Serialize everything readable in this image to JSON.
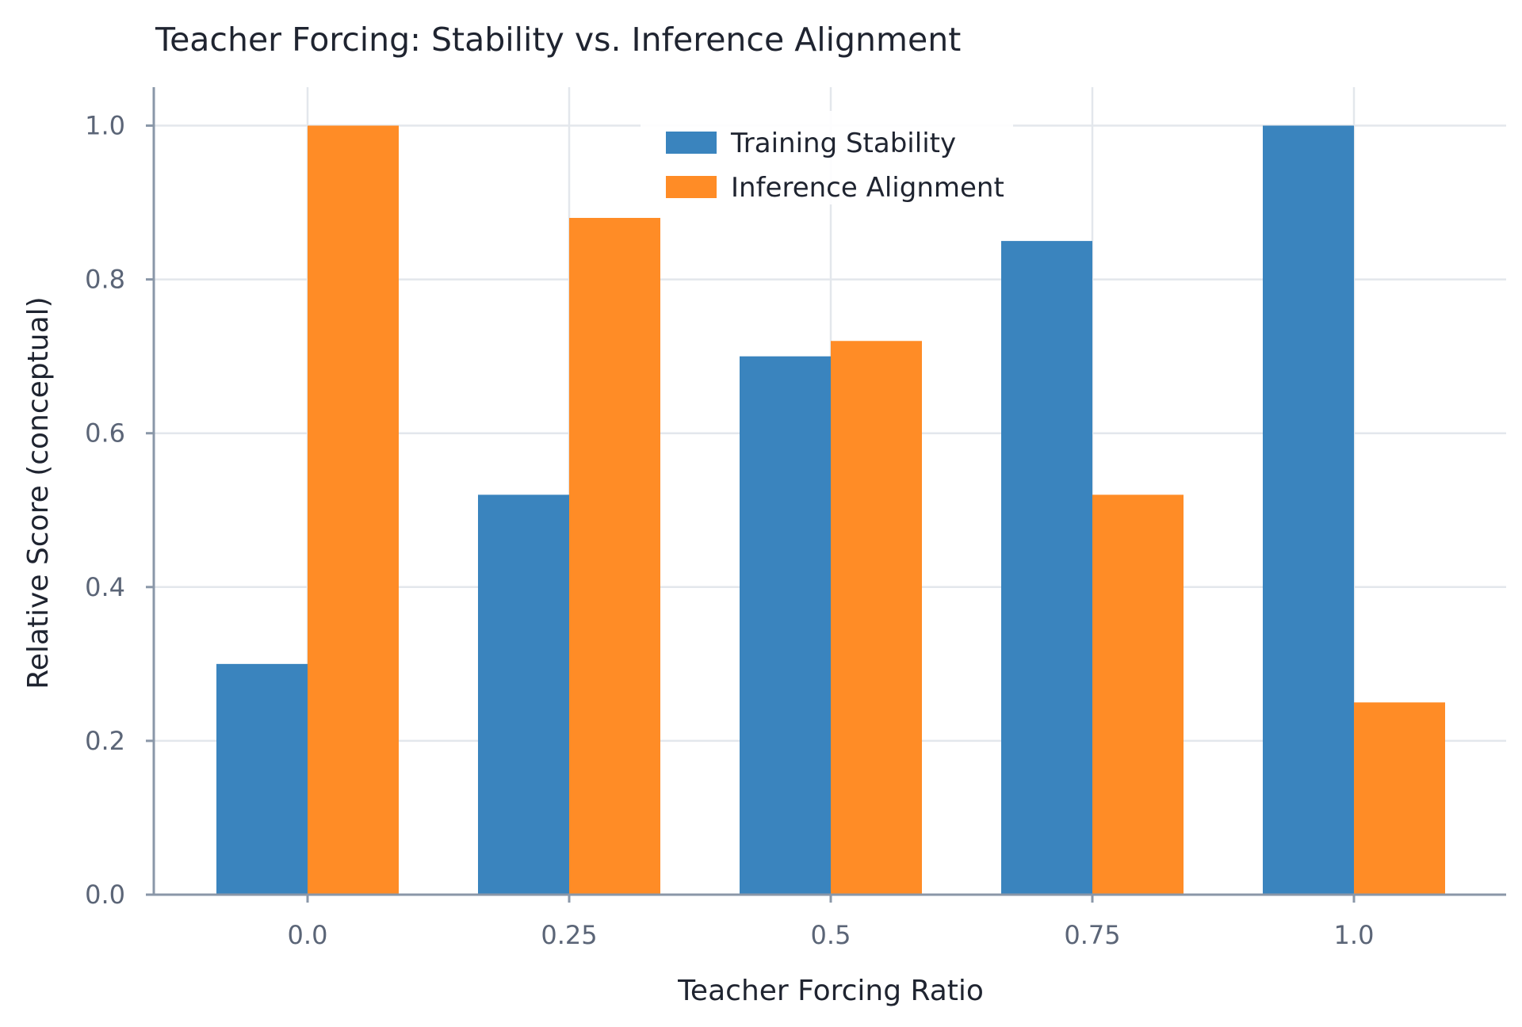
{
  "chart_data": {
    "type": "bar",
    "title": "Teacher Forcing: Stability vs. Inference Alignment",
    "xlabel": "Teacher Forcing Ratio",
    "ylabel": "Relative Score (conceptual)",
    "categories": [
      "0.0",
      "0.25",
      "0.5",
      "0.75",
      "1.0"
    ],
    "series": [
      {
        "name": "Training Stability",
        "color": "#3a84be",
        "values": [
          0.3,
          0.52,
          0.7,
          0.85,
          1.0
        ]
      },
      {
        "name": "Inference Alignment",
        "color": "#ff8c26",
        "values": [
          1.0,
          0.88,
          0.72,
          0.52,
          0.25
        ]
      }
    ],
    "ylim": [
      0,
      1.05
    ],
    "yticks": [
      "0.0",
      "0.2",
      "0.4",
      "0.6",
      "0.8",
      "1.0"
    ],
    "grid": true,
    "legend_position": "top-center"
  }
}
